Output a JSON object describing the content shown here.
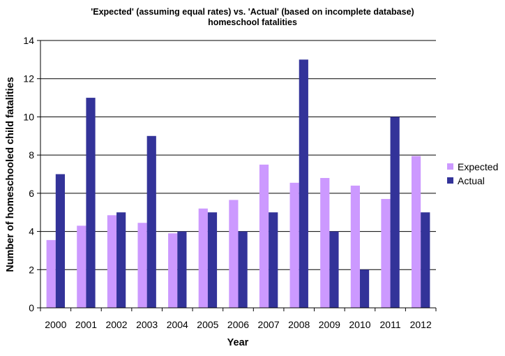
{
  "chart_data": {
    "type": "bar",
    "title_line1": "'Expected' (assuming equal rates) vs. 'Actual' (based on incomplete database)",
    "title_line2": "homeschool fatalities",
    "xlabel": "Year",
    "ylabel": "Number of homeschooled child fatalities",
    "categories": [
      "2000",
      "2001",
      "2002",
      "2003",
      "2004",
      "2005",
      "2006",
      "2007",
      "2008",
      "2009",
      "2010",
      "2011",
      "2012"
    ],
    "series": [
      {
        "name": "Expected",
        "color": "#cc99ff",
        "values": [
          3.55,
          4.3,
          4.85,
          4.45,
          3.9,
          5.2,
          5.65,
          7.5,
          6.55,
          6.8,
          6.4,
          5.7,
          7.95
        ]
      },
      {
        "name": "Actual",
        "color": "#333399",
        "values": [
          7,
          11,
          5,
          9,
          4,
          5,
          4,
          5,
          13,
          4,
          2,
          10,
          5
        ]
      }
    ],
    "ylim": [
      0,
      14
    ],
    "yticks": [
      "0",
      "2",
      "4",
      "6",
      "8",
      "10",
      "12",
      "14"
    ],
    "grid": true,
    "legend_position": "right"
  }
}
